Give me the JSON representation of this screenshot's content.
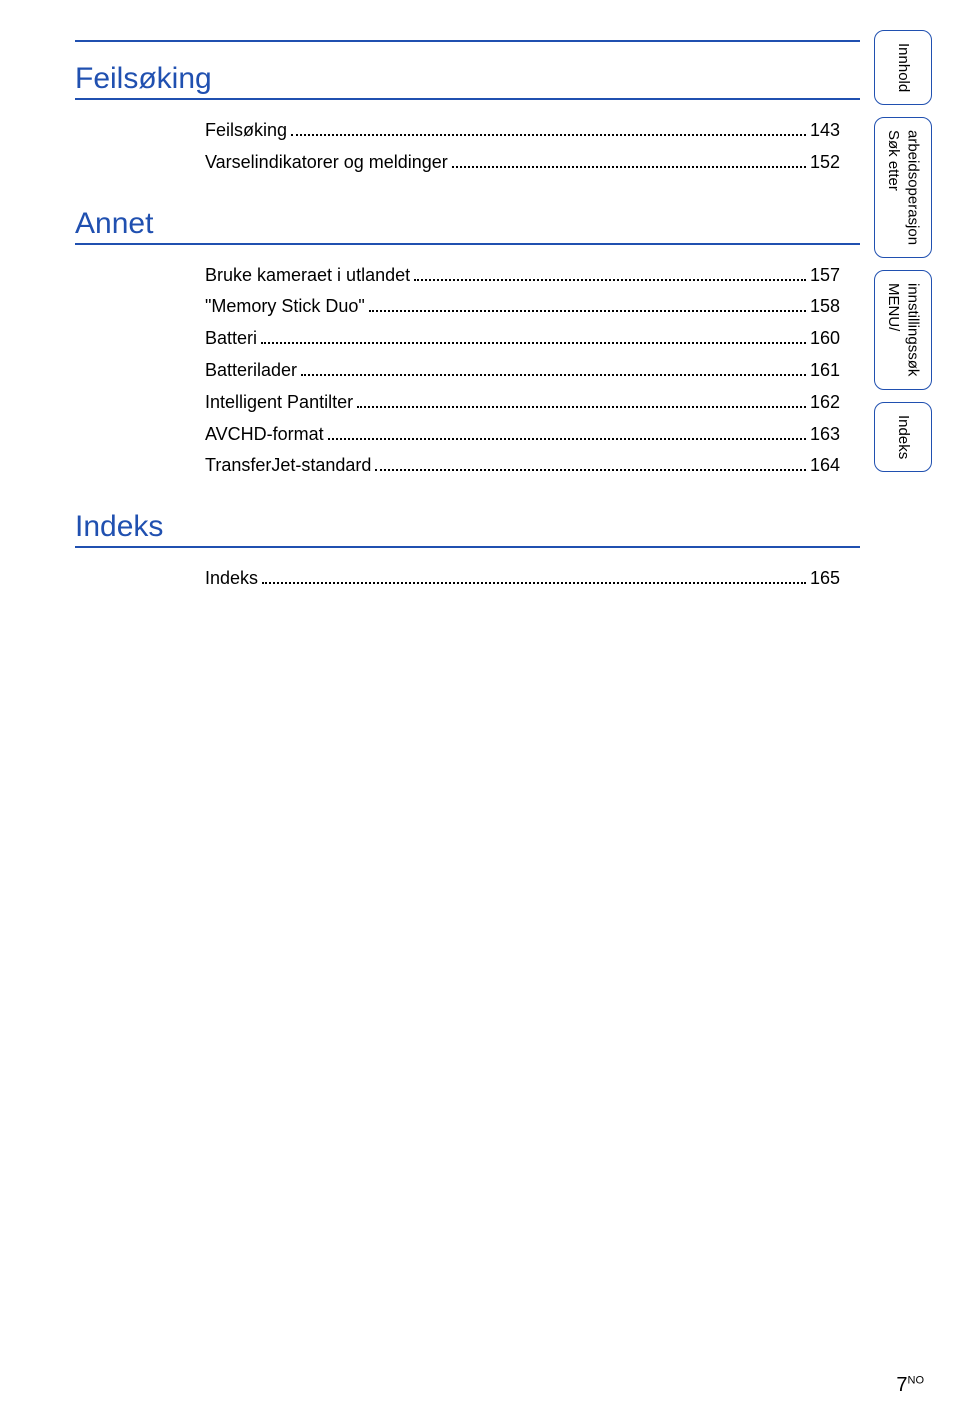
{
  "colors": {
    "headingBlue": "#2050b0",
    "ruleBlue": "#2050b0",
    "text": "#000000",
    "background": "#ffffff"
  },
  "typography": {
    "bodyFont": "Arial, Helvetica, sans-serif",
    "headingSize": 30,
    "entrySize": 18,
    "tabSize": 15
  },
  "sections": [
    {
      "heading": "Feilsøking",
      "entries": [
        {
          "label": "Feilsøking",
          "page": "143"
        },
        {
          "label": "Varselindikatorer og meldinger",
          "page": "152"
        }
      ]
    },
    {
      "heading": "Annet",
      "entries": [
        {
          "label": "Bruke kameraet i utlandet",
          "page": "157"
        },
        {
          "label": "\"Memory Stick Duo\"",
          "page": "158"
        },
        {
          "label": "Batteri",
          "page": "160"
        },
        {
          "label": "Batterilader",
          "page": "161"
        },
        {
          "label": "Intelligent Pantilter",
          "page": "162"
        },
        {
          "label": "AVCHD-format",
          "page": "163"
        },
        {
          "label": "TransferJet-standard",
          "page": "164"
        }
      ]
    },
    {
      "heading": "Indeks",
      "entries": [
        {
          "label": "Indeks",
          "page": "165"
        }
      ]
    }
  ],
  "sideTabs": [
    {
      "lines": [
        "Innhold"
      ]
    },
    {
      "lines": [
        "arbeidsoperasjon",
        "Søk etter"
      ]
    },
    {
      "lines": [
        "innstillingssøk",
        "MENU/"
      ]
    },
    {
      "lines": [
        "Indeks"
      ]
    }
  ],
  "pageNumber": {
    "num": "7",
    "sup": "NO"
  }
}
